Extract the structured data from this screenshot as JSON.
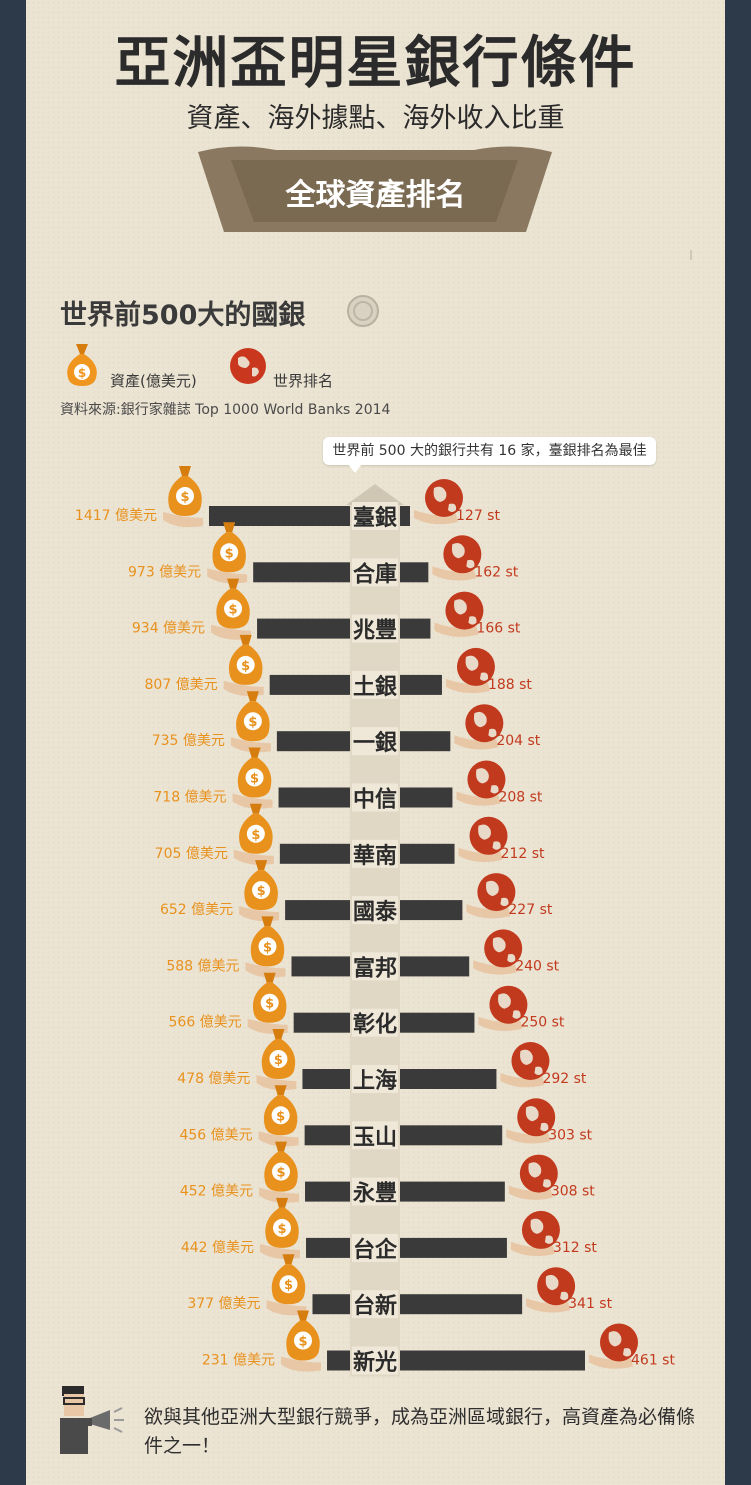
{
  "header": {
    "title": "亞洲盃明星銀行條件",
    "subtitle": "資產、海外據點、海外收入比重",
    "ribbon": "全球資產排名"
  },
  "section": {
    "heading": "世界前500大的國銀",
    "legend_assets": "資產(億美元)",
    "legend_rank": "世界排名",
    "source": "資料來源:銀行家雜誌 Top 1000 World Banks 2014",
    "callout": "世界前 500 大的銀行共有 16 家，臺銀排名為最佳"
  },
  "footer": {
    "text": "欲與其他亞洲大型銀行競爭，成為亞洲區域銀行，高資產為必備條件之一！"
  },
  "colors": {
    "asset": "#e8911d",
    "rank": "#c23a1e",
    "bar": "#3a3a3a",
    "background": "#ece4d3",
    "frame": "#2c3a4a"
  },
  "icons": [
    "money-bag-icon",
    "globe-icon",
    "megaphone-icon",
    "person-icon",
    "bank-building-icon"
  ],
  "chart_data": {
    "type": "bar",
    "categories": [
      "臺銀",
      "合庫",
      "兆豐",
      "土銀",
      "一銀",
      "中信",
      "華南",
      "國泰",
      "富邦",
      "彰化",
      "上海",
      "玉山",
      "永豐",
      "台企",
      "台新",
      "新光"
    ],
    "series": [
      {
        "values": [
          1417,
          973,
          934,
          807,
          735,
          718,
          705,
          652,
          588,
          566,
          478,
          456,
          452,
          442,
          377,
          231
        ],
        "labels": [
          "1417 億美元",
          "973 億美元",
          "934 億美元",
          "807 億美元",
          "735 億美元",
          "718 億美元",
          "705 億美元",
          "652 億美元",
          "588 億美元",
          "566 億美元",
          "478 億美元",
          "456 億美元",
          "452 億美元",
          "442 億美元",
          "377 億美元",
          "231 億美元"
        ]
      },
      {
        "values": [
          127,
          162,
          166,
          188,
          204,
          208,
          212,
          227,
          240,
          250,
          292,
          303,
          308,
          312,
          341,
          461
        ],
        "labels": [
          "127 st",
          "162 st",
          "166 st",
          "188 st",
          "204 st",
          "208 st",
          "212 st",
          "227 st",
          "240 st",
          "250 st",
          "292 st",
          "303 st",
          "308 st",
          "312 st",
          "341 st",
          "461 st"
        ]
      }
    ],
    "legend": "top-left",
    "grid": false
  }
}
